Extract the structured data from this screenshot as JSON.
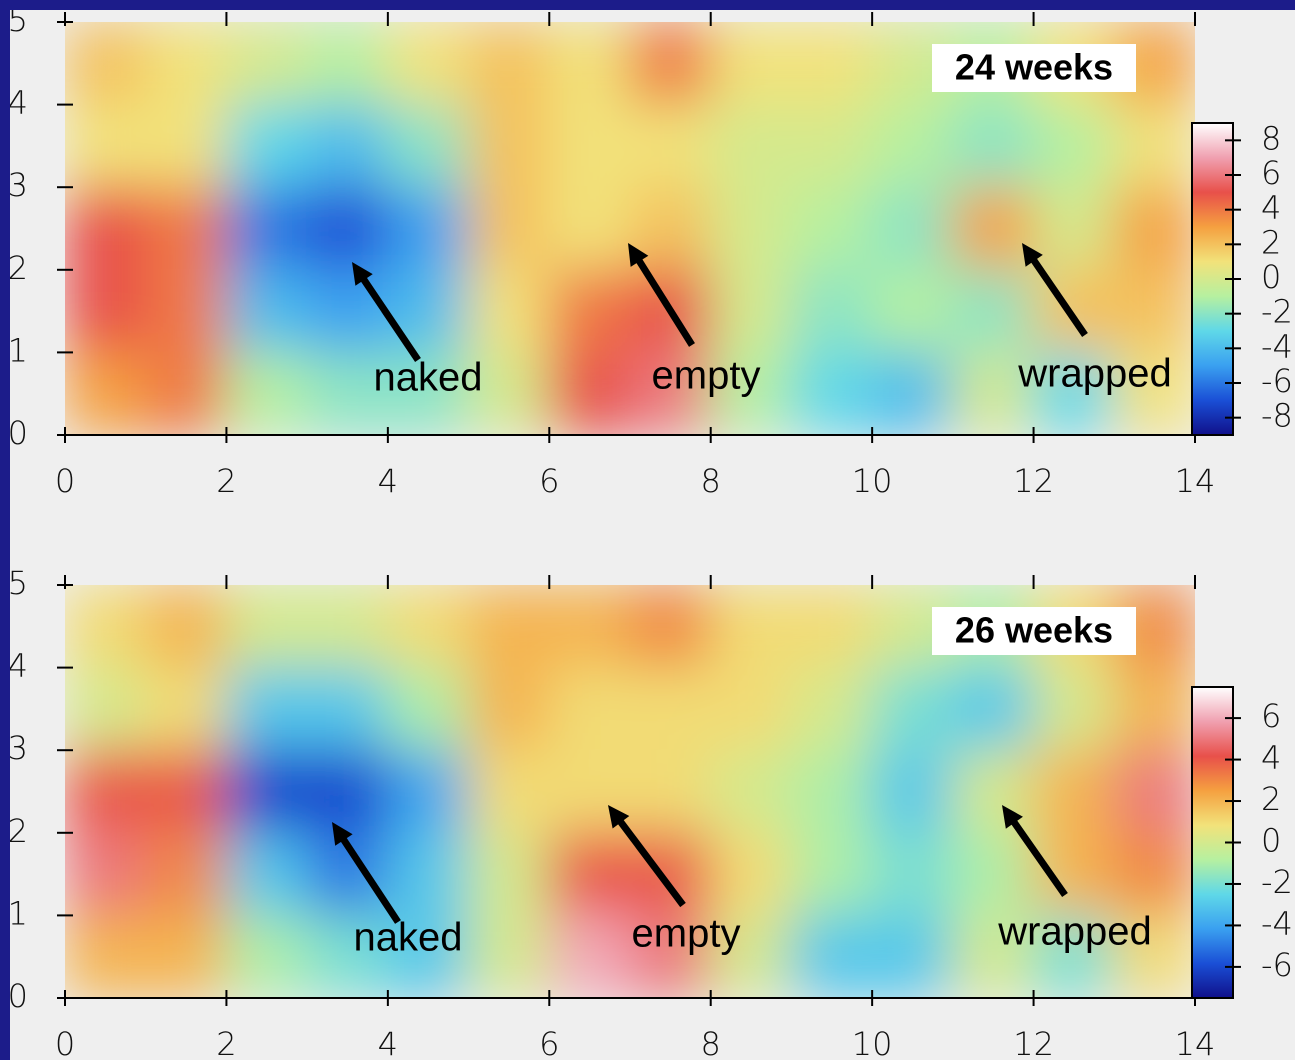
{
  "chart_data": [
    {
      "type": "heatmap",
      "label": "24 weeks",
      "annotations": [
        "naked",
        "empty",
        "wrapped"
      ],
      "x": [
        0.5,
        1.5,
        2.5,
        3.5,
        4.5,
        5.5,
        6.5,
        7.5,
        8.5,
        9.5,
        10.5,
        11.5,
        12.5,
        13.5
      ],
      "y": [
        4.5,
        3.5,
        2.5,
        1.5,
        0.5
      ],
      "z": [
        [
          2,
          1,
          0,
          -1,
          1,
          2,
          1,
          4,
          1,
          1,
          0,
          -1,
          1,
          3
        ],
        [
          1,
          1,
          -3,
          -4,
          -2,
          2,
          1,
          1,
          0,
          0,
          -1,
          -2,
          -1,
          1
        ],
        [
          5,
          4,
          -6,
          -7,
          -5,
          2,
          1,
          2,
          0,
          -1,
          -2,
          3,
          0,
          3
        ],
        [
          5,
          4,
          -4,
          -5,
          -4,
          1,
          4,
          5,
          0,
          -2,
          -1,
          -2,
          2,
          2
        ],
        [
          3,
          4,
          -1,
          -2,
          -2,
          0,
          5,
          6,
          -1,
          -3,
          -4,
          0,
          -3,
          1
        ]
      ],
      "xlim": [
        0,
        14
      ],
      "ylim": [
        0,
        5
      ],
      "xticks": [
        0,
        2,
        4,
        6,
        8,
        10,
        12,
        14
      ],
      "yticks": [
        0,
        1,
        2,
        3,
        4,
        5
      ],
      "clim": [
        -9,
        9
      ],
      "cticks": [
        8,
        6,
        4,
        2,
        0,
        -2,
        -4,
        -6,
        -8
      ],
      "colors": [
        "#10108a",
        "#1a4fd6",
        "#3aa0f0",
        "#5fd8e8",
        "#b6f0a0",
        "#f2e27a",
        "#f5a040",
        "#e8504a",
        "#f0a0b0",
        "#ffffff"
      ]
    },
    {
      "type": "heatmap",
      "label": "26 weeks",
      "annotations": [
        "naked",
        "empty",
        "wrapped"
      ],
      "x": [
        0.5,
        1.5,
        2.5,
        3.5,
        4.5,
        5.5,
        6.5,
        7.5,
        8.5,
        9.5,
        10.5,
        11.5,
        12.5,
        13.5
      ],
      "y": [
        4.5,
        3.5,
        2.5,
        1.5,
        0.5
      ],
      "z": [
        [
          1,
          2,
          0,
          0,
          1,
          2,
          2,
          3,
          1,
          1,
          0,
          -1,
          1,
          3
        ],
        [
          0,
          1,
          -3,
          -3,
          -1,
          2,
          1,
          1,
          1,
          0,
          -2,
          -3,
          0,
          2
        ],
        [
          4,
          4,
          -6,
          -6,
          -4,
          1,
          1,
          1,
          0,
          -1,
          -3,
          0,
          2,
          5
        ],
        [
          5,
          3,
          -3,
          -5,
          -3,
          0,
          4,
          4,
          1,
          -1,
          -2,
          -1,
          2,
          3
        ],
        [
          2,
          2,
          -1,
          -2,
          -3,
          0,
          6,
          5,
          0,
          -3,
          -3,
          0,
          -2,
          1
        ]
      ],
      "xlim": [
        0,
        14
      ],
      "ylim": [
        0,
        5
      ],
      "xticks": [
        0,
        2,
        4,
        6,
        8,
        10,
        12,
        14
      ],
      "yticks": [
        0,
        1,
        2,
        3,
        4,
        5
      ],
      "clim": [
        -7.5,
        7.5
      ],
      "cticks": [
        6,
        4,
        2,
        0,
        -2,
        -4,
        -6
      ],
      "colors": [
        "#10108a",
        "#1a4fd6",
        "#3aa0f0",
        "#5fd8e8",
        "#b6f0a0",
        "#f2e27a",
        "#f5a040",
        "#e8504a",
        "#f0a0b0",
        "#ffffff"
      ]
    }
  ]
}
